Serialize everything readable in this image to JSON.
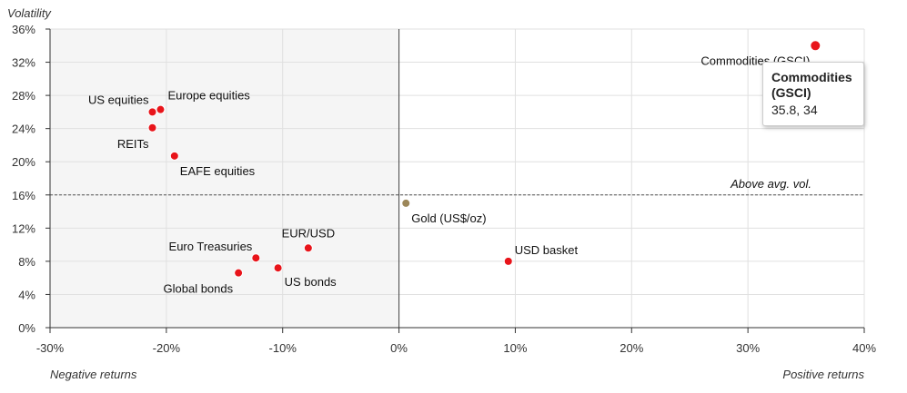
{
  "colors": {
    "point": "#e8141a",
    "gold_point": "#9c8759",
    "grid": "#e0e0e0",
    "axis": "#333333",
    "negative_area": "#f5f5f5",
    "zero_line": "#444444",
    "ref_line": "#555555"
  },
  "chart_data": {
    "type": "scatter",
    "title": "",
    "xlabel": "",
    "ylabel": "Volatility",
    "xlim": [
      -30,
      40
    ],
    "ylim": [
      0,
      36
    ],
    "x_ticks": [
      "-30%",
      "-20%",
      "-10%",
      "0%",
      "10%",
      "20%",
      "30%",
      "40%"
    ],
    "y_ticks": [
      "0%",
      "4%",
      "8%",
      "12%",
      "16%",
      "20%",
      "24%",
      "28%",
      "32%",
      "36%"
    ],
    "x_ticks_values": [
      -30,
      -20,
      -10,
      0,
      10,
      20,
      30,
      40
    ],
    "y_ticks_values": [
      0,
      4,
      8,
      12,
      16,
      20,
      24,
      28,
      32,
      36
    ],
    "grid": true,
    "quadrant_labels": {
      "negative": "Negative returns",
      "positive": "Positive returns"
    },
    "reference_line": {
      "y": 16,
      "label": "Above avg. vol."
    },
    "points": [
      {
        "name": "US equities",
        "x": -21.2,
        "y": 26
      },
      {
        "name": "Europe equities",
        "x": -20.5,
        "y": 26.3
      },
      {
        "name": "REITs",
        "x": -21.2,
        "y": 24.1
      },
      {
        "name": "EAFE equities",
        "x": -19.3,
        "y": 20.7
      },
      {
        "name": "Euro Treasuries",
        "x": -12.3,
        "y": 8.4
      },
      {
        "name": "EUR/USD",
        "x": -7.8,
        "y": 9.6
      },
      {
        "name": "Global bonds",
        "x": -13.8,
        "y": 6.6
      },
      {
        "name": "US bonds",
        "x": -10.4,
        "y": 7.2
      },
      {
        "name": "Gold (US$/oz)",
        "x": 0.6,
        "y": 15
      },
      {
        "name": "USD basket",
        "x": 9.4,
        "y": 8
      },
      {
        "name": "Commodities (GSCI)",
        "x": 35.8,
        "y": 34
      }
    ],
    "tooltip": {
      "title_line1": "Commodities",
      "title_line2": "(GSCI)",
      "value": "35.8, 34"
    }
  }
}
